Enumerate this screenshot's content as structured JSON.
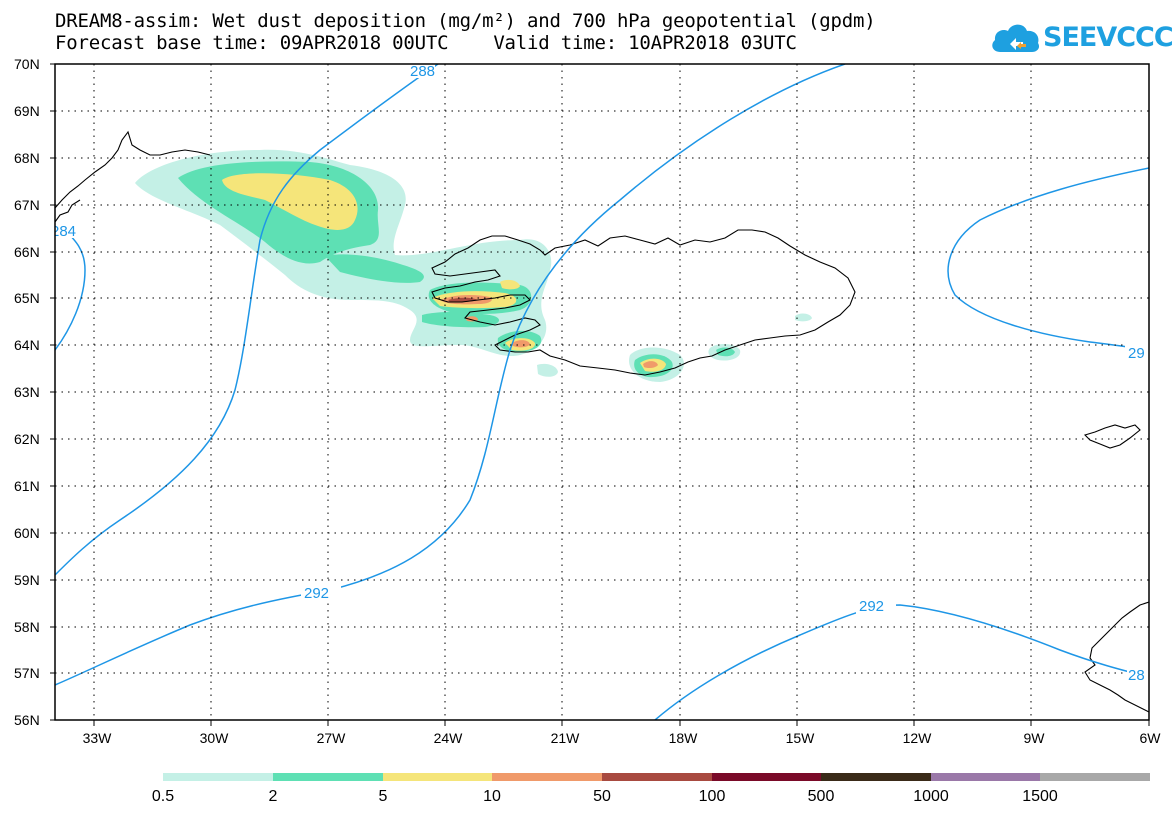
{
  "title": {
    "line1": "DREAM8-assim: Wet dust deposition (mg/m²) and 700 hPa geopotential (gpdm)",
    "line2": "Forecast base time: 09APR2018 00UTC    Valid time: 10APR2018 03UTC"
  },
  "logo": {
    "text": "SEEVCCC",
    "color": "#1ea0e0",
    "icon": "cloud-icon"
  },
  "map": {
    "lat_labels": [
      "70N",
      "69N",
      "68N",
      "67N",
      "66N",
      "65N",
      "64N",
      "63N",
      "62N",
      "61N",
      "60N",
      "59N",
      "58N",
      "57N",
      "56N"
    ],
    "lon_labels": [
      "33W",
      "30W",
      "27W",
      "24W",
      "21W",
      "18W",
      "15W",
      "12W",
      "9W",
      "6W"
    ],
    "lat_range": [
      56,
      70
    ],
    "lon_range": [
      -34,
      -6
    ],
    "gridlines": true,
    "contour_color": "#1e96e6",
    "contour_labels": [
      "288",
      "292",
      "292",
      "284",
      "29",
      "28"
    ]
  },
  "legend": {
    "labels": [
      "0.5",
      "2",
      "5",
      "10",
      "50",
      "100",
      "500",
      "1000",
      "1500"
    ],
    "colors": [
      "#c4f0e6",
      "#5ee0b4",
      "#f5e57a",
      "#f09a6a",
      "#a84a40",
      "#7a0a28",
      "#3a2a18",
      "#9a78a8",
      "#a8a8a8"
    ]
  },
  "deposition_colors": {
    "level1": "#c4f0e6",
    "level2": "#5ee0b4",
    "level3": "#f5e57a",
    "level4": "#f09a6a",
    "level5": "#a84a40"
  }
}
